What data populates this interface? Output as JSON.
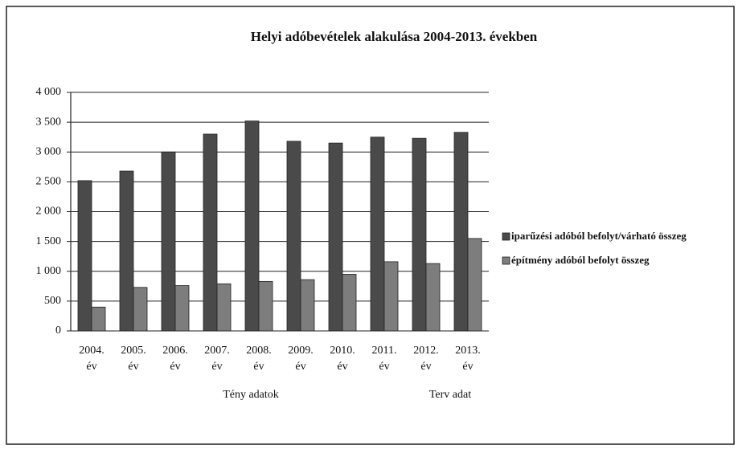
{
  "chart_data": {
    "type": "bar",
    "title": "Helyi adóbevételek alakulása 2004-2013. években",
    "categories": [
      "2004. év",
      "2005. év",
      "2006. év",
      "2007. év",
      "2008. év",
      "2009. év",
      "2010. év",
      "2011. év",
      "2012. év",
      "2013. év"
    ],
    "series": [
      {
        "name": "iparűzési adóból befolyt/várható összeg",
        "color": "#4a4a4a",
        "values": [
          2520,
          2680,
          3000,
          3300,
          3520,
          3180,
          3150,
          3250,
          3230,
          3330
        ]
      },
      {
        "name": "építmény adóból befolyt összeg",
        "color": "#7d7d7d",
        "values": [
          400,
          730,
          760,
          790,
          830,
          860,
          950,
          1160,
          1130,
          1550
        ]
      }
    ],
    "ylim": [
      0,
      4000
    ],
    "yticks": [
      0,
      500,
      {
        "value": 1000,
        "label": "1 000"
      },
      {
        "value": 1500,
        "label": "1 500"
      },
      {
        "value": 2000,
        "label": "2 000"
      },
      {
        "value": 2500,
        "label": "2 500"
      },
      {
        "value": 3000,
        "label": "3 000"
      },
      {
        "value": 3500,
        "label": "3 500"
      },
      {
        "value": 4000,
        "label": "4 000"
      }
    ],
    "grid": true,
    "legend": "right",
    "annotations": [
      "Tény adatok",
      "Terv adat"
    ]
  }
}
